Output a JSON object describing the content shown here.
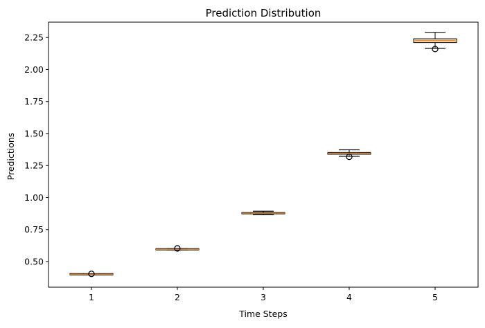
{
  "chart_data": {
    "type": "box",
    "title": "Prediction Distribution",
    "xlabel": "Time Steps",
    "ylabel": "Predictions",
    "categories": [
      "1",
      "2",
      "3",
      "4",
      "5"
    ],
    "ylim": [
      0.3,
      2.37
    ],
    "yticks": [
      0.5,
      0.75,
      1.0,
      1.25,
      1.5,
      1.75,
      2.0,
      2.25
    ],
    "ytick_labels": [
      "0.50",
      "0.75",
      "1.00",
      "1.25",
      "1.50",
      "1.75",
      "2.00",
      "2.25"
    ],
    "grid": false,
    "legend": "none",
    "boxes": [
      {
        "label": "1",
        "whisker_low": 0.397,
        "q1": 0.399,
        "median": 0.401,
        "q3": 0.403,
        "whisker_high": 0.405,
        "fliers": [
          0.404
        ]
      },
      {
        "label": "2",
        "whisker_low": 0.591,
        "q1": 0.594,
        "median": 0.596,
        "q3": 0.598,
        "whisker_high": 0.601,
        "fliers": [
          0.603
        ]
      },
      {
        "label": "3",
        "whisker_low": 0.865,
        "q1": 0.873,
        "median": 0.878,
        "q3": 0.883,
        "whisker_high": 0.893,
        "fliers": []
      },
      {
        "label": "4",
        "whisker_low": 1.322,
        "q1": 1.338,
        "median": 1.345,
        "q3": 1.352,
        "whisker_high": 1.373,
        "fliers": [
          1.318
        ]
      },
      {
        "label": "5",
        "whisker_low": 2.166,
        "q1": 2.21,
        "median": 2.225,
        "q3": 2.24,
        "whisker_high": 2.29,
        "fliers": [
          2.16
        ]
      }
    ],
    "colors": {
      "box_face": "#fde6c8",
      "box_edge": "#000000",
      "median": "#e8892b",
      "whisker": "#000000",
      "flier": "#000000",
      "axes": "#000000"
    }
  }
}
